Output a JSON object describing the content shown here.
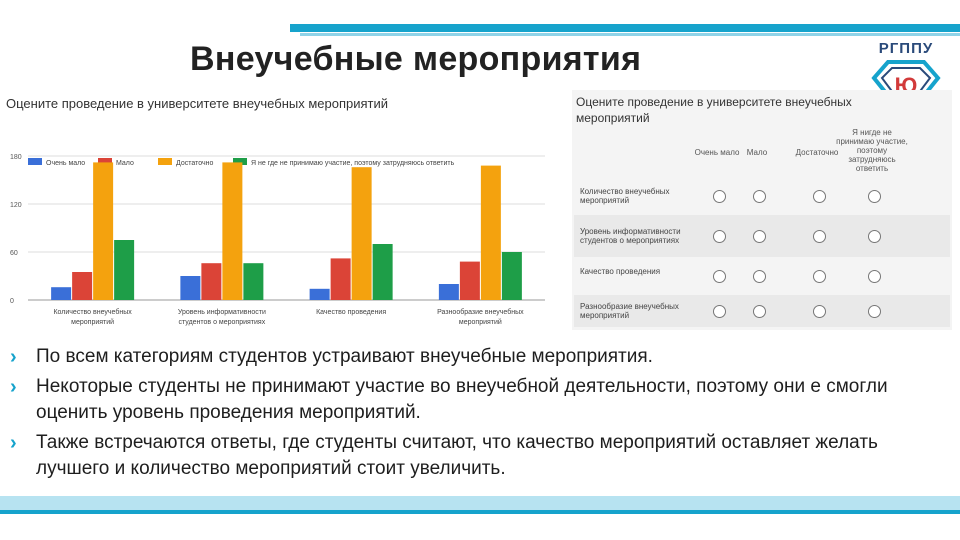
{
  "slide": {
    "title": "Внеучебные мероприятия",
    "logo_text": "РГППУ",
    "logo_mark": "Ю"
  },
  "colors": {
    "accent": "#16a3cc",
    "series": [
      "#3a6fd8",
      "#db4437",
      "#f4a20e",
      "#1e9e48"
    ]
  },
  "chart_data": {
    "type": "bar",
    "title": "Оцените проведение в университете внеучебных мероприятий",
    "categories": [
      [
        "Количество внеучебных",
        "мероприятий"
      ],
      [
        "Уровень информативности",
        "студентов о мероприятиях"
      ],
      [
        "Качество проведения"
      ],
      [
        "Разнообразие внеучебных",
        "мероприятий"
      ]
    ],
    "series": [
      {
        "name": "Очень мало",
        "values": [
          16,
          30,
          14,
          20
        ]
      },
      {
        "name": "Мало",
        "values": [
          35,
          46,
          52,
          48
        ]
      },
      {
        "name": "Достаточно",
        "values": [
          172,
          172,
          166,
          168
        ]
      },
      {
        "name": "Я не где не принимаю участие, поэтому затрудняюсь ответить",
        "values": [
          75,
          46,
          70,
          60
        ]
      }
    ],
    "yticks": [
      "0",
      "60",
      "120",
      "180"
    ],
    "ylim": [
      0,
      185
    ],
    "legend_position": "top",
    "grid": true
  },
  "survey": {
    "title": "Оцените проведение в университете внеучебных мероприятий",
    "columns": [
      "Очень мало",
      "Мало",
      "Достаточно",
      "Я нигде не принимаю участие, поэтому затрудняюсь ответить"
    ],
    "rows": [
      "Количество внеучебных мероприятий",
      "Уровень информативности студентов о мероприятиях",
      "Качество проведения",
      "Разнообразие внеучебных мероприятий"
    ]
  },
  "bullets": [
    "По всем категориям студентов устраивают внеучебные мероприятия.",
    "Некоторые студенты не принимают участие во внеучебной деятельности, поэтому они е смогли оценить уровень проведения мероприятий.",
    "Также встречаются ответы, где студенты считают, что качество мероприятий оставляет желать лучшего и количество мероприятий стоит увеличить."
  ]
}
